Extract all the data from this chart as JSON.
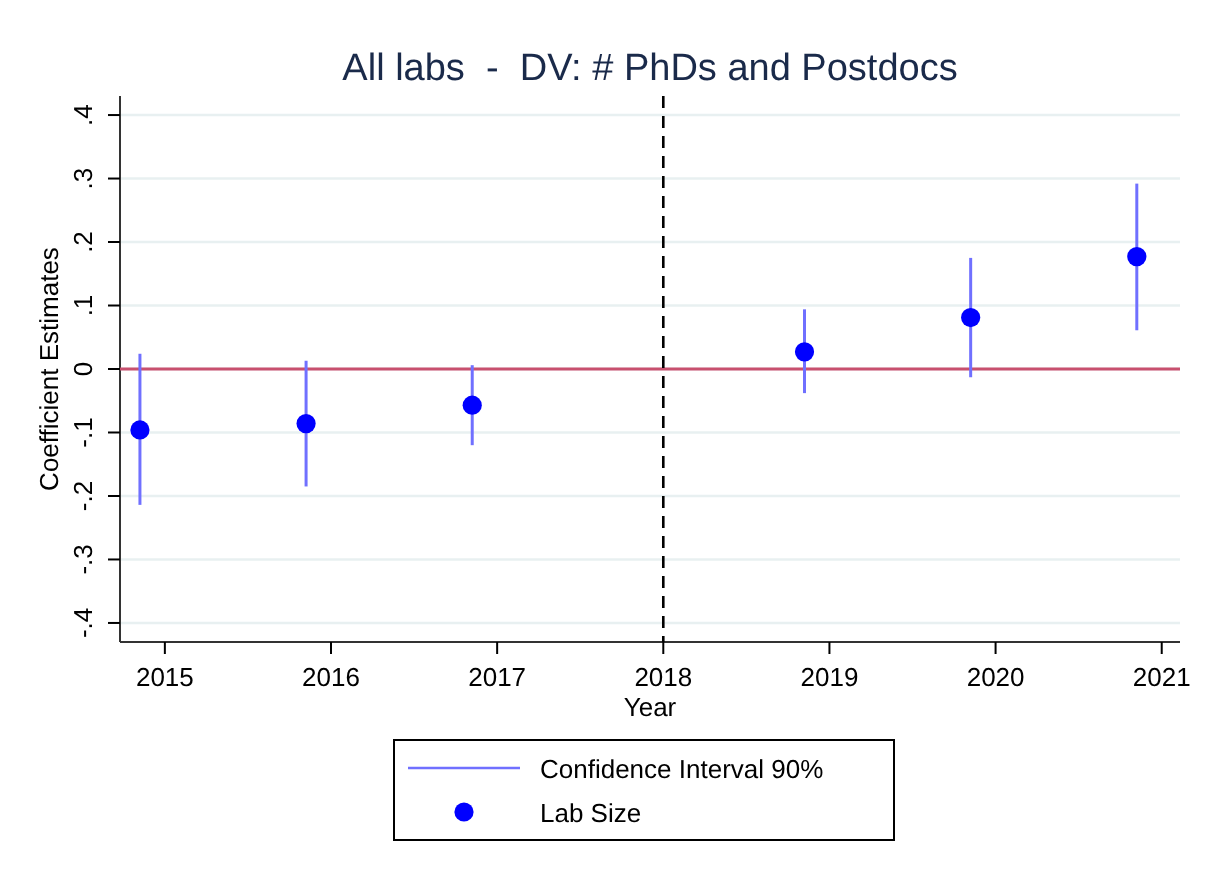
{
  "chart_data": {
    "type": "scatter",
    "title": "All labs  -  DV: # PhDs and Postdocs",
    "xlabel": "Year",
    "ylabel": "Coefficient Estimates",
    "xlim": [
      2014.73,
      2021.11
    ],
    "xticks": [
      2015,
      2016,
      2017,
      2018,
      2019,
      2020,
      2021
    ],
    "ylim": [
      -0.43,
      0.43
    ],
    "yticks": [
      {
        "value": -0.4,
        "label": "-.4"
      },
      {
        "value": -0.3,
        "label": "-.3"
      },
      {
        "value": -0.2,
        "label": "-.2"
      },
      {
        "value": -0.1,
        "label": "-.1"
      },
      0,
      {
        "value": 0.1,
        "label": ".1"
      },
      {
        "value": 0.2,
        "label": ".2"
      },
      {
        "value": 0.3,
        "label": ".3"
      },
      {
        "value": 0.4,
        "label": ".4"
      }
    ],
    "grid": "y",
    "legend": "bottom",
    "marker": "circle",
    "series": [
      {
        "name": "Lab Size",
        "color": "#0000ff",
        "x": [
          2014.85,
          2015.85,
          2016.85,
          2018.85,
          2019.85,
          2020.85
        ],
        "values": [
          -0.096,
          -0.086,
          -0.057,
          0.027,
          0.081,
          0.177
        ],
        "errors": [
          [
            -0.214,
            0.024
          ],
          [
            -0.185,
            0.013
          ],
          [
            -0.12,
            0.006
          ],
          [
            -0.038,
            0.094
          ],
          [
            -0.013,
            0.175
          ],
          [
            0.061,
            0.292
          ]
        ]
      }
    ],
    "annotations": [
      "Confidence Interval 90%"
    ],
    "ref_lines": [
      {
        "axis": "y",
        "value": 0,
        "color": "#c8506e",
        "line_style": "solid"
      },
      {
        "axis": "x",
        "value": 2018,
        "color": "#000000",
        "line_style": "dashed"
      }
    ]
  }
}
